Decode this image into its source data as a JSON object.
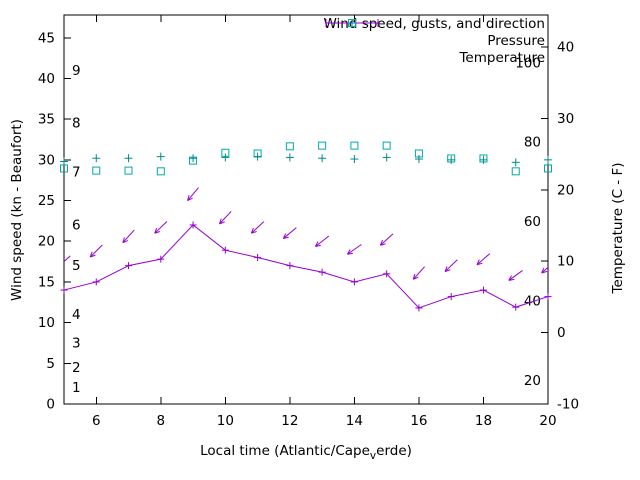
{
  "chart": {
    "ylabel_left": "Wind speed (kn - Beaufort)",
    "ylabel_right": "Temperature (C - F)",
    "xlabel": {
      "prefix": "Local time (Atlantic/Cape",
      "subscript": "v",
      "suffix": "erde)"
    },
    "legend": [
      {
        "label": "Wind speed, gusts, and direction",
        "marker": "errorbar",
        "color": "#9400d3"
      },
      {
        "label": "Pressure",
        "marker": "plus",
        "color": "#008b8b"
      },
      {
        "label": "Temperature",
        "marker": "square",
        "color": "#00aaad"
      }
    ]
  },
  "chart_data": {
    "type": "line",
    "title": "Wind speed, gusts, and direction / Pressure / Temperature",
    "x": [
      5,
      6,
      7,
      8,
      9,
      10,
      11,
      12,
      13,
      14,
      15,
      16,
      17,
      18,
      19,
      20
    ],
    "series": [
      {
        "name": "wind_speed_kn",
        "axis": "left",
        "style": "line+plus",
        "color": "#9400d3",
        "values": [
          14,
          15,
          17,
          17.8,
          22,
          18.9,
          18,
          17,
          16.2,
          15,
          16,
          11.8,
          13.2,
          14,
          11.9,
          13.2
        ]
      },
      {
        "name": "wind_gusts_kn",
        "axis": "left",
        "style": "direction-arrows",
        "color": "#9400d3",
        "values": [
          17.5,
          18.8,
          20.6,
          21.7,
          25.8,
          22.9,
          21.7,
          21.0,
          20.0,
          19.0,
          20.2,
          16.1,
          17.0,
          17.8,
          15.8,
          16.8
        ],
        "arrow_angles_deg": [
          222,
          225,
          228,
          224,
          230,
          227,
          223,
          220,
          218,
          215,
          222,
          228,
          224,
          221,
          216,
          222
        ]
      },
      {
        "name": "pressure",
        "axis": "left",
        "style": "plus",
        "color": "#008b8b",
        "values": [
          29.8,
          30.2,
          30.2,
          30.4,
          30.2,
          30.3,
          30.4,
          30.3,
          30.2,
          30.1,
          30.3,
          30.1,
          30.0,
          30.0,
          29.7,
          30.0
        ]
      },
      {
        "name": "temperature_c",
        "axis": "right",
        "style": "open-square",
        "color": "#00aaad",
        "values": [
          23.0,
          22.7,
          22.7,
          22.6,
          24.1,
          25.2,
          25.1,
          26.1,
          26.2,
          26.2,
          26.2,
          25.1,
          24.4,
          24.4,
          22.6,
          23.0
        ]
      }
    ],
    "axes": {
      "x": {
        "min": 5,
        "max": 20,
        "ticks": [
          6,
          8,
          10,
          12,
          14,
          16,
          18,
          20
        ]
      },
      "y_left": {
        "min": 0,
        "max": 47.8,
        "ticks": [
          0,
          5,
          10,
          15,
          20,
          25,
          30,
          35,
          40,
          45
        ]
      },
      "y_right": {
        "min": -10,
        "max": 44.5,
        "ticks": [
          -10,
          0,
          10,
          20,
          30,
          40
        ]
      }
    },
    "inner_labels": {
      "beaufort": [
        {
          "n": "1",
          "kn": 2
        },
        {
          "n": "2",
          "kn": 4.5
        },
        {
          "n": "3",
          "kn": 7.5
        },
        {
          "n": "4",
          "kn": 11
        },
        {
          "n": "5",
          "kn": 17
        },
        {
          "n": "6",
          "kn": 22
        },
        {
          "n": "7",
          "kn": 28.5
        },
        {
          "n": "8",
          "kn": 34.5
        },
        {
          "n": "9",
          "kn": 41
        }
      ],
      "fahrenheit": [
        {
          "f": "20",
          "c": -6.7
        },
        {
          "f": "40",
          "c": 4.4
        },
        {
          "f": "60",
          "c": 15.6
        },
        {
          "f": "80",
          "c": 26.7
        },
        {
          "f": "100",
          "c": 37.8
        }
      ]
    },
    "grid": false,
    "legend_position": "top-right-inside"
  }
}
